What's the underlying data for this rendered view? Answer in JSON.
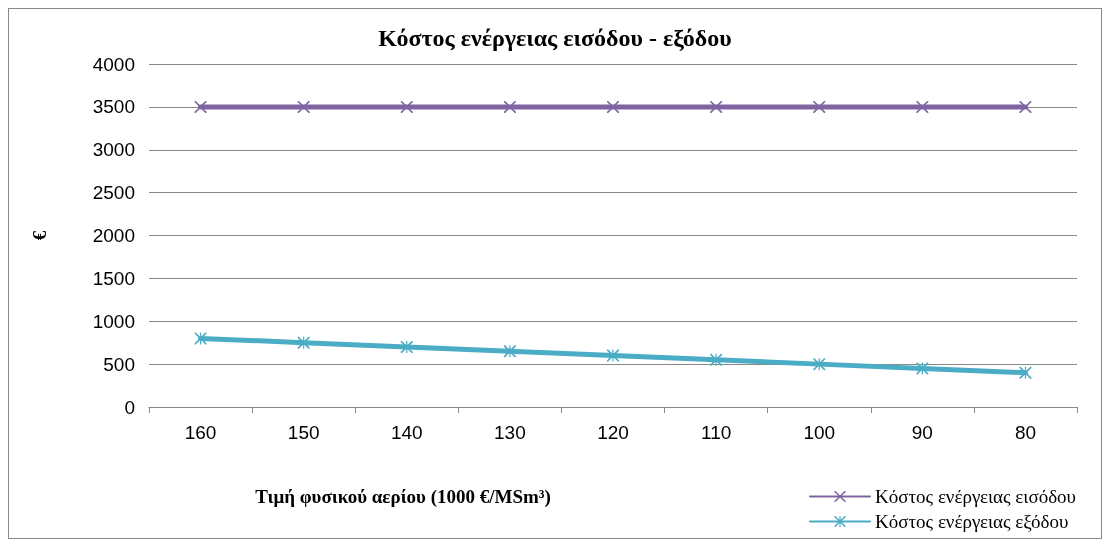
{
  "chart_data": {
    "type": "line",
    "title": "Κόστος ενέργειας εισόδου - εξόδου",
    "xlabel": "Τιμή φυσικού αερίου (1000 €/MSm³)",
    "ylabel": "€",
    "categories": [
      "160",
      "150",
      "140",
      "130",
      "120",
      "110",
      "100",
      "90",
      "80"
    ],
    "series": [
      {
        "name": "Κόστος ενέργειας εισόδου",
        "color": "#8064a2",
        "marker": "cross",
        "values": [
          3500,
          3500,
          3500,
          3500,
          3500,
          3500,
          3500,
          3500,
          3500
        ]
      },
      {
        "name": "Κόστος ενέργειας εξόδου",
        "color": "#4bacc6",
        "marker": "star",
        "values": [
          800,
          750,
          700,
          650,
          600,
          550,
          500,
          450,
          400
        ]
      }
    ],
    "ylim": [
      0,
      4000
    ],
    "yticks": [
      0,
      500,
      1000,
      1500,
      2000,
      2500,
      3000,
      3500,
      4000
    ],
    "grid": "y",
    "legend": "bottom right",
    "line_style": "solid"
  }
}
